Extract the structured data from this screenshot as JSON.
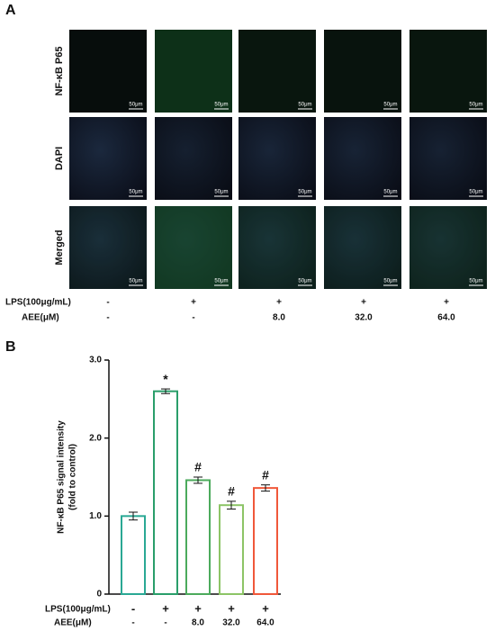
{
  "panel_a": {
    "label": "A",
    "row_labels": [
      "NF-κB P65",
      "DAPI",
      "Merged"
    ],
    "scale_bar": "50μm",
    "lps_label": "LPS(100μg/mL)",
    "lps": [
      "-",
      "+",
      "+",
      "+",
      "+"
    ],
    "aee_label": "AEE(μM)",
    "aee": [
      "-",
      "-",
      "8.0",
      "32.0",
      "64.0"
    ]
  },
  "chart_data": {
    "type": "bar",
    "label": "B",
    "y_label": [
      "NF-κB P65 signal intensity",
      "(fold to control)"
    ],
    "lps_label": "LPS(100μg/mL)",
    "lps": [
      "-",
      "+",
      "+",
      "+",
      "+"
    ],
    "aee_label": "AEE(μM)",
    "aee": [
      "-",
      "-",
      "8.0",
      "32.0",
      "64.0"
    ],
    "values": [
      1.0,
      2.6,
      1.46,
      1.14,
      1.36
    ],
    "errors": [
      0.05,
      0.03,
      0.04,
      0.05,
      0.04
    ],
    "colors": [
      "#2aa894",
      "#2a9e6a",
      "#4caa5c",
      "#8cc466",
      "#f0583a"
    ],
    "annotations": [
      null,
      "*",
      "#",
      "#",
      "#"
    ],
    "ylim": [
      0,
      3
    ],
    "yticks": [
      0,
      {
        "value": 1,
        "label": "1.0"
      },
      {
        "value": 2,
        "label": "2.0"
      },
      {
        "value": 3,
        "label": "3.0"
      }
    ]
  }
}
